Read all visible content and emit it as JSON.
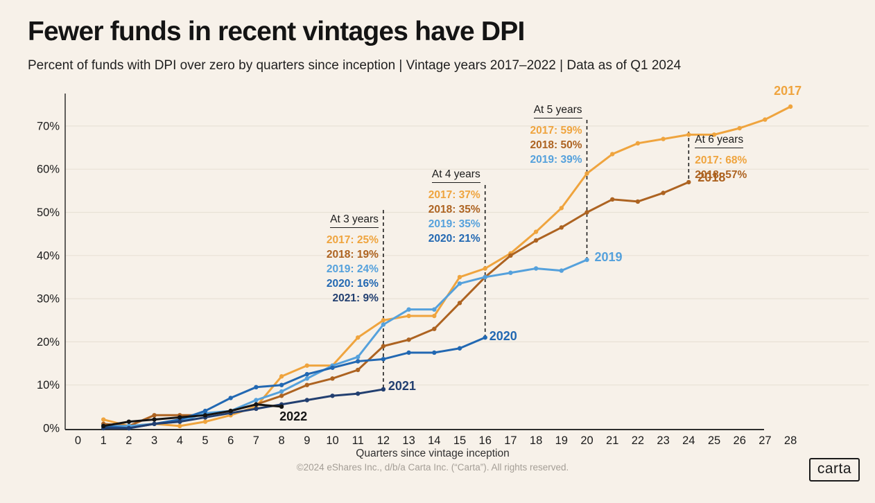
{
  "header": {
    "title": "Fewer funds in recent vintages have DPI",
    "subtitle": "Percent of funds with DPI over zero by quarters since inception | Vintage years 2017–2022 | Data as of Q1 2024"
  },
  "chart_data": {
    "type": "line",
    "title": "Fewer funds in recent vintages have DPI",
    "subtitle": "Percent of funds with DPI over zero by quarters since inception",
    "xlabel": "Quarters since vintage inception",
    "ylabel": "Percent of funds with DPI over zero",
    "data_as_of": "Q1 2024",
    "vintage_years": "2017–2022",
    "start_quarter": 1,
    "xlim": [
      0,
      28
    ],
    "ylim": [
      0,
      75
    ],
    "x_ticks": [
      0,
      1,
      2,
      3,
      4,
      5,
      6,
      7,
      8,
      9,
      10,
      11,
      12,
      13,
      14,
      15,
      16,
      17,
      18,
      19,
      20,
      21,
      22,
      23,
      24,
      25,
      26,
      27,
      28
    ],
    "y_ticks_pct": [
      0,
      10,
      20,
      30,
      40,
      50,
      60,
      70
    ],
    "grid": "horizontal",
    "legend": "inline-end-labels",
    "series": [
      {
        "name": "2017",
        "color": "#EFA43E",
        "values": [
          2,
          0.5,
          1,
          0.5,
          1.5,
          3,
          5,
          12,
          14.5,
          14.5,
          21,
          25,
          26,
          26,
          35,
          37,
          40.5,
          45.5,
          51,
          59,
          63.5,
          66,
          67,
          68,
          68,
          69.5,
          71.5,
          74.5
        ]
      },
      {
        "name": "2018",
        "color": "#AD6321",
        "values": [
          1,
          0.5,
          3,
          3,
          3,
          4,
          5.5,
          7.5,
          10,
          11.5,
          13.5,
          19,
          20.5,
          23,
          29,
          35,
          40,
          43.5,
          46.5,
          50,
          53,
          52.5,
          54.5,
          57
        ]
      },
      {
        "name": "2019",
        "color": "#55A1DC",
        "values": [
          0.5,
          0.5,
          1,
          1.5,
          3.5,
          4,
          6.5,
          8.5,
          11.5,
          14.5,
          16.5,
          24,
          27.5,
          27.5,
          33.5,
          35,
          36,
          37,
          36.5,
          39
        ]
      },
      {
        "name": "2020",
        "color": "#2268B2",
        "values": [
          0.5,
          0,
          1,
          2,
          4,
          7,
          9.5,
          10,
          12.5,
          14,
          15.5,
          16,
          17.5,
          17.5,
          18.5,
          21
        ]
      },
      {
        "name": "2021",
        "color": "#223F70",
        "values": [
          0,
          0,
          1,
          1.5,
          2.5,
          3.5,
          4.5,
          5.5,
          6.5,
          7.5,
          8,
          9
        ]
      },
      {
        "name": "2022",
        "color": "#141414",
        "values": [
          0.5,
          1.5,
          2,
          2.5,
          3,
          4,
          5.5,
          5
        ]
      }
    ],
    "annotations": [
      {
        "title": "At 3 years",
        "at_quarter": 12,
        "entries": [
          {
            "year": "2017",
            "value": "25%"
          },
          {
            "year": "2018",
            "value": "19%"
          },
          {
            "year": "2019",
            "value": "24%"
          },
          {
            "year": "2020",
            "value": "16%"
          },
          {
            "year": "2021",
            "value": "9%"
          }
        ]
      },
      {
        "title": "At 4 years",
        "at_quarter": 16,
        "entries": [
          {
            "year": "2017",
            "value": "37%"
          },
          {
            "year": "2018",
            "value": "35%"
          },
          {
            "year": "2019",
            "value": "35%"
          },
          {
            "year": "2020",
            "value": "21%"
          }
        ]
      },
      {
        "title": "At 5 years",
        "at_quarter": 20,
        "entries": [
          {
            "year": "2017",
            "value": "59%"
          },
          {
            "year": "2018",
            "value": "50%"
          },
          {
            "year": "2019",
            "value": "39%"
          }
        ]
      },
      {
        "title": "At 6 years",
        "at_quarter": 24,
        "entries": [
          {
            "year": "2017",
            "value": "68%"
          },
          {
            "year": "2018",
            "value": "57%"
          }
        ]
      }
    ]
  },
  "footer": {
    "copyright": "©2024 eShares Inc., d/b/a Carta Inc. (“Carta”). All rights reserved.",
    "logo_text": "carta"
  },
  "colors": {
    "background": "#F7F1E9",
    "grid": "#E8E1D6",
    "axis": "#2E2E2E",
    "dashed_line": "#1D1D1D",
    "tick_text": "#1B1B1B",
    "muted_text": "#A49E96"
  }
}
